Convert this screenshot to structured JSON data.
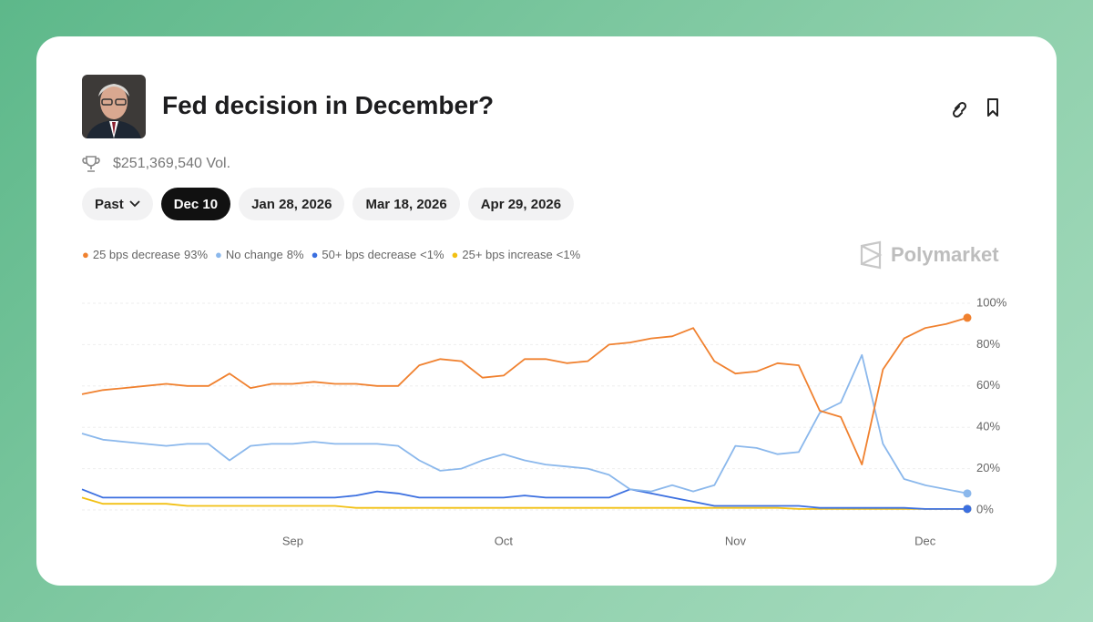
{
  "header": {
    "title": "Fed decision in December?",
    "volume": "$251,369,540 Vol."
  },
  "tabs": [
    "Past",
    "Dec 10",
    "Jan 28, 2026",
    "Mar 18, 2026",
    "Apr 29, 2026"
  ],
  "active_tab": 1,
  "brand": "Polymarket",
  "chart_data": {
    "type": "line",
    "categories": [
      null,
      null,
      null,
      null,
      null,
      null,
      null,
      null,
      null,
      null,
      "Sep",
      null,
      null,
      null,
      null,
      null,
      null,
      null,
      null,
      null,
      "Oct",
      null,
      null,
      null,
      null,
      null,
      null,
      null,
      null,
      null,
      null,
      "Nov",
      null,
      null,
      null,
      null,
      null,
      null,
      null,
      null,
      "Dec",
      null,
      null
    ],
    "series": [
      {
        "name": "25 bps decrease",
        "legend_value": "93%",
        "color": "#f0812f",
        "values": [
          56,
          58,
          59,
          60,
          61,
          60,
          60,
          66,
          59,
          61,
          61,
          62,
          61,
          61,
          60,
          60,
          70,
          73,
          72,
          64,
          65,
          73,
          73,
          71,
          72,
          80,
          81,
          83,
          84,
          88,
          72,
          66,
          67,
          71,
          70,
          48,
          45,
          22,
          68,
          83,
          88,
          90,
          93
        ]
      },
      {
        "name": "No change",
        "legend_value": "8%",
        "color": "#8bb8ec",
        "values": [
          37,
          34,
          33,
          32,
          31,
          32,
          32,
          24,
          31,
          32,
          32,
          33,
          32,
          32,
          32,
          31,
          24,
          19,
          20,
          24,
          27,
          24,
          22,
          21,
          20,
          17,
          10,
          9,
          12,
          9,
          12,
          31,
          30,
          27,
          28,
          47,
          52,
          75,
          32,
          15,
          12,
          10,
          8
        ]
      },
      {
        "name": "50+ bps decrease",
        "legend_value": "<1%",
        "color": "#3b6fe0",
        "values": [
          10,
          6,
          6,
          6,
          6,
          6,
          6,
          6,
          6,
          6,
          6,
          6,
          6,
          7,
          9,
          8,
          6,
          6,
          6,
          6,
          6,
          7,
          6,
          6,
          6,
          6,
          10,
          8,
          6,
          4,
          2,
          2,
          2,
          2,
          2,
          1,
          1,
          1,
          1,
          1,
          0.5,
          0.5,
          0.5
        ]
      },
      {
        "name": "25+ bps increase",
        "legend_value": "<1%",
        "color": "#f2c013",
        "values": [
          6,
          3,
          3,
          3,
          3,
          2,
          2,
          2,
          2,
          2,
          2,
          2,
          2,
          1,
          1,
          1,
          1,
          1,
          1,
          1,
          1,
          1,
          1,
          1,
          1,
          1,
          1,
          1,
          1,
          1,
          1,
          1,
          1,
          1,
          0.5,
          0.5,
          0.5,
          0.5,
          0.5,
          0.5,
          0.5,
          0.5,
          0.5
        ]
      }
    ],
    "ylim": [
      0,
      100
    ],
    "yticks": [
      {
        "value": 0,
        "label": "0%"
      },
      {
        "value": 20,
        "label": "20%"
      },
      {
        "value": 40,
        "label": "40%"
      },
      {
        "value": 60,
        "label": "60%"
      },
      {
        "value": 80,
        "label": "80%"
      },
      {
        "value": 100,
        "label": "100%"
      }
    ],
    "grid": true
  }
}
